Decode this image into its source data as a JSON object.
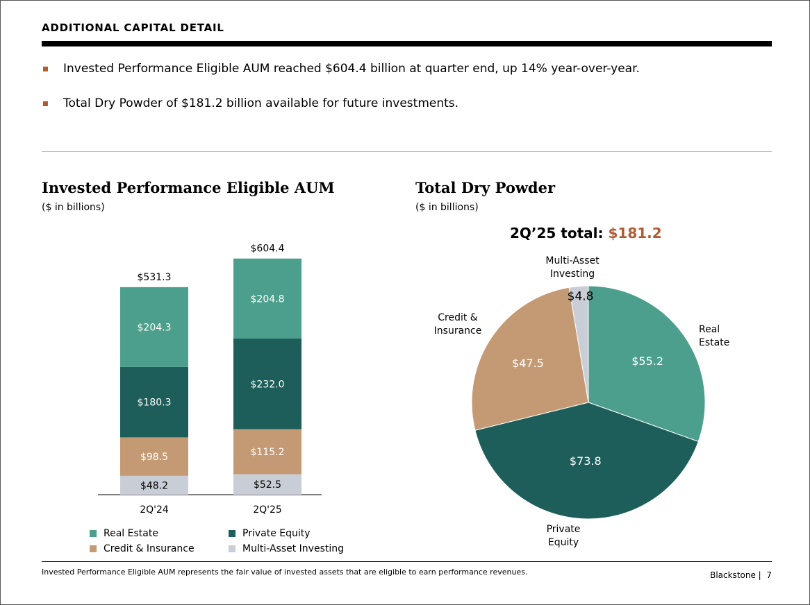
{
  "header": {
    "title": "ADDITIONAL CAPITAL DETAIL"
  },
  "bullets": [
    "Invested Performance Eligible AUM reached $604.4 billion at quarter end, up 14% year-over-year.",
    "Total Dry Powder of $181.2 billion available for future investments."
  ],
  "colors": {
    "real_estate": "#4c9f8c",
    "private_equity": "#1d5e5a",
    "credit_insurance": "#c49a74",
    "multi_asset": "#c9cdd5",
    "accent": "#b45a30"
  },
  "chart_data": [
    {
      "type": "bar",
      "stacked": true,
      "title": "Invested Performance Eligible AUM",
      "subtitle": "($ in billions)",
      "categories": [
        "2Q'24",
        "2Q'25"
      ],
      "totals": [
        "$531.3",
        "$604.4"
      ],
      "total_values": [
        531.3,
        604.4
      ],
      "series": [
        {
          "name": "Multi-Asset Investing",
          "values": [
            48.2,
            52.5
          ],
          "labels": [
            "$48.2",
            "$52.5"
          ]
        },
        {
          "name": "Credit & Insurance",
          "values": [
            98.5,
            115.2
          ],
          "labels": [
            "$98.5",
            "$115.2"
          ]
        },
        {
          "name": "Private Equity",
          "values": [
            180.3,
            232.0
          ],
          "labels": [
            "$180.3",
            "$232.0"
          ]
        },
        {
          "name": "Real Estate",
          "values": [
            204.3,
            204.8
          ],
          "labels": [
            "$204.3",
            "$204.8"
          ]
        }
      ],
      "legend": [
        "Real Estate",
        "Private Equity",
        "Credit & Insurance",
        "Multi-Asset Investing"
      ],
      "legend_position": "bottom"
    },
    {
      "type": "pie",
      "title": "Total Dry Powder",
      "subtitle": "($ in billions)",
      "total_label": "2Q’25 total:",
      "total_value": "$181.2",
      "slices": [
        {
          "name": "Real Estate",
          "value": 55.2,
          "label": "$55.2",
          "category_lines": [
            "Real",
            "Estate"
          ]
        },
        {
          "name": "Private Equity",
          "value": 73.8,
          "label": "$73.8",
          "category_lines": [
            "Private",
            "Equity"
          ]
        },
        {
          "name": "Credit & Insurance",
          "value": 47.5,
          "label": "$47.5",
          "category_lines": [
            "Credit &",
            "Insurance"
          ]
        },
        {
          "name": "Multi-Asset Investing",
          "value": 4.8,
          "label": "$4.8",
          "category_lines": [
            "Multi-Asset",
            "Investing"
          ]
        }
      ]
    }
  ],
  "footer": {
    "note": "Invested Performance Eligible AUM represents the fair value of invested assets that are eligible to earn performance revenues.",
    "brand": "Blackstone |",
    "page": "7"
  }
}
